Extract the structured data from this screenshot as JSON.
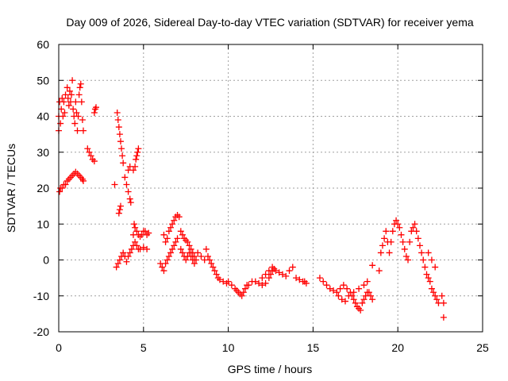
{
  "chart_data": {
    "type": "scatter",
    "title": "Day 009 of 2026, Sidereal Day-to-day VTEC variation (SDTVAR) for receiver yema",
    "xlabel": "GPS time / hours",
    "ylabel": "SDTVAR / TECUs",
    "xlim": [
      0,
      25
    ],
    "ylim": [
      -20,
      60
    ],
    "xticks": [
      "0",
      "5",
      "10",
      "15",
      "20",
      "25"
    ],
    "yticks": [
      "-20",
      "-10",
      "0",
      "10",
      "20",
      "30",
      "40",
      "50",
      "60"
    ],
    "grid": true,
    "marker": "+",
    "marker_color": "#ff0000",
    "series": [
      {
        "name": "SDTVAR",
        "points": [
          [
            0.0,
            36
          ],
          [
            0.0,
            40
          ],
          [
            0.05,
            44
          ],
          [
            0.1,
            38
          ],
          [
            0.15,
            42
          ],
          [
            0.2,
            45
          ],
          [
            0.25,
            40
          ],
          [
            0.3,
            44
          ],
          [
            0.35,
            41
          ],
          [
            0.4,
            46
          ],
          [
            0.5,
            48
          ],
          [
            0.55,
            45
          ],
          [
            0.6,
            43
          ],
          [
            0.65,
            47
          ],
          [
            0.7,
            44
          ],
          [
            0.75,
            46
          ],
          [
            0.8,
            50
          ],
          [
            0.85,
            42
          ],
          [
            0.9,
            40
          ],
          [
            0.95,
            38
          ],
          [
            1.0,
            44
          ],
          [
            1.05,
            41
          ],
          [
            1.1,
            36
          ],
          [
            1.15,
            40
          ],
          [
            1.2,
            46
          ],
          [
            1.25,
            48
          ],
          [
            1.3,
            49
          ],
          [
            1.35,
            44
          ],
          [
            1.4,
            39
          ],
          [
            1.45,
            36
          ],
          [
            0.05,
            19
          ],
          [
            0.1,
            20
          ],
          [
            0.2,
            20
          ],
          [
            0.3,
            21
          ],
          [
            0.4,
            21
          ],
          [
            0.5,
            22
          ],
          [
            0.6,
            22.5
          ],
          [
            0.7,
            23
          ],
          [
            0.8,
            23.5
          ],
          [
            0.9,
            24
          ],
          [
            1.0,
            24.5
          ],
          [
            1.1,
            24
          ],
          [
            1.2,
            23.5
          ],
          [
            1.3,
            23
          ],
          [
            1.4,
            22.5
          ],
          [
            1.45,
            22
          ],
          [
            1.7,
            31
          ],
          [
            1.8,
            30
          ],
          [
            1.9,
            29
          ],
          [
            2.0,
            28
          ],
          [
            2.1,
            27.5
          ],
          [
            2.1,
            41
          ],
          [
            2.15,
            42
          ],
          [
            2.2,
            42.5
          ],
          [
            3.3,
            21
          ],
          [
            3.45,
            41
          ],
          [
            3.5,
            39
          ],
          [
            3.55,
            37
          ],
          [
            3.6,
            35
          ],
          [
            3.65,
            33
          ],
          [
            3.7,
            31
          ],
          [
            3.75,
            29
          ],
          [
            3.8,
            27
          ],
          [
            3.4,
            -2
          ],
          [
            3.5,
            -1
          ],
          [
            3.6,
            0
          ],
          [
            3.7,
            1
          ],
          [
            3.8,
            2
          ],
          [
            3.9,
            1
          ],
          [
            3.55,
            13
          ],
          [
            3.6,
            14
          ],
          [
            3.65,
            15
          ],
          [
            3.9,
            23
          ],
          [
            4.0,
            21
          ],
          [
            4.1,
            19
          ],
          [
            4.2,
            17
          ],
          [
            4.25,
            16
          ],
          [
            4.1,
            25
          ],
          [
            4.2,
            26
          ],
          [
            4.4,
            25
          ],
          [
            4.5,
            26
          ],
          [
            4.55,
            28
          ],
          [
            4.6,
            29
          ],
          [
            4.65,
            30
          ],
          [
            4.7,
            31
          ],
          [
            4.0,
            -0.5
          ],
          [
            4.1,
            1
          ],
          [
            4.2,
            2
          ],
          [
            4.3,
            3
          ],
          [
            4.4,
            4
          ],
          [
            4.5,
            5
          ],
          [
            4.6,
            4
          ],
          [
            4.7,
            3
          ],
          [
            4.8,
            3
          ],
          [
            5.0,
            3.5
          ],
          [
            5.2,
            3
          ],
          [
            4.4,
            7
          ],
          [
            4.5,
            9
          ],
          [
            4.6,
            8
          ],
          [
            4.7,
            7
          ],
          [
            4.8,
            6.5
          ],
          [
            4.9,
            7
          ],
          [
            5.0,
            8
          ],
          [
            5.1,
            8
          ],
          [
            5.2,
            7
          ],
          [
            5.3,
            7.5
          ],
          [
            4.45,
            10
          ],
          [
            6.0,
            -1
          ],
          [
            6.1,
            -2
          ],
          [
            6.2,
            -3
          ],
          [
            6.3,
            -1
          ],
          [
            6.4,
            0
          ],
          [
            6.5,
            1
          ],
          [
            6.6,
            2
          ],
          [
            6.7,
            3
          ],
          [
            6.8,
            4
          ],
          [
            6.9,
            5
          ],
          [
            7.0,
            6
          ],
          [
            6.2,
            7
          ],
          [
            6.3,
            5
          ],
          [
            6.4,
            6
          ],
          [
            6.5,
            8
          ],
          [
            6.6,
            9
          ],
          [
            6.7,
            10
          ],
          [
            6.8,
            11
          ],
          [
            6.9,
            12
          ],
          [
            7.0,
            12.5
          ],
          [
            7.1,
            12
          ],
          [
            7.2,
            3
          ],
          [
            7.3,
            2
          ],
          [
            7.4,
            1
          ],
          [
            7.5,
            0
          ],
          [
            7.6,
            1
          ],
          [
            7.7,
            2
          ],
          [
            7.8,
            1
          ],
          [
            7.9,
            0
          ],
          [
            8.0,
            -1
          ],
          [
            8.1,
            0
          ],
          [
            7.2,
            8
          ],
          [
            7.3,
            7
          ],
          [
            7.4,
            6
          ],
          [
            7.5,
            5.5
          ],
          [
            7.6,
            5
          ],
          [
            7.7,
            4
          ],
          [
            7.8,
            3
          ],
          [
            7.9,
            2
          ],
          [
            8.0,
            1
          ],
          [
            8.2,
            2
          ],
          [
            8.4,
            1
          ],
          [
            8.6,
            0
          ],
          [
            8.7,
            3
          ],
          [
            8.8,
            1
          ],
          [
            8.9,
            0
          ],
          [
            9.0,
            -1
          ],
          [
            9.1,
            -2
          ],
          [
            9.2,
            -3
          ],
          [
            9.3,
            -4
          ],
          [
            9.4,
            -5
          ],
          [
            9.5,
            -5.5
          ],
          [
            9.7,
            -6
          ],
          [
            9.9,
            -6.5
          ],
          [
            10.0,
            -6
          ],
          [
            10.2,
            -7
          ],
          [
            10.4,
            -8
          ],
          [
            10.5,
            -8.5
          ],
          [
            10.6,
            -9
          ],
          [
            10.7,
            -9.5
          ],
          [
            10.8,
            -10
          ],
          [
            10.9,
            -9
          ],
          [
            11.0,
            -8
          ],
          [
            11.1,
            -7
          ],
          [
            11.2,
            -7
          ],
          [
            11.4,
            -6
          ],
          [
            11.6,
            -6
          ],
          [
            11.8,
            -6.5
          ],
          [
            12.0,
            -7
          ],
          [
            12.2,
            -6.5
          ],
          [
            12.4,
            -5
          ],
          [
            12.5,
            -4
          ],
          [
            12.6,
            -3
          ],
          [
            12.7,
            -2.5
          ],
          [
            12.0,
            -5
          ],
          [
            12.2,
            -4
          ],
          [
            12.4,
            -3
          ],
          [
            12.6,
            -2
          ],
          [
            12.8,
            -3
          ],
          [
            13.0,
            -3.5
          ],
          [
            13.2,
            -4
          ],
          [
            13.4,
            -4.5
          ],
          [
            13.6,
            -3
          ],
          [
            13.8,
            -2
          ],
          [
            14.0,
            -5
          ],
          [
            14.2,
            -5.5
          ],
          [
            14.4,
            -6
          ],
          [
            14.5,
            -6
          ],
          [
            14.6,
            -6.5
          ],
          [
            15.4,
            -5
          ],
          [
            15.6,
            -6
          ],
          [
            15.8,
            -7
          ],
          [
            16.0,
            -8
          ],
          [
            16.2,
            -8.5
          ],
          [
            16.4,
            -9
          ],
          [
            16.6,
            -8
          ],
          [
            16.8,
            -7
          ],
          [
            17.0,
            -8
          ],
          [
            17.2,
            -9
          ],
          [
            17.3,
            -10
          ],
          [
            17.4,
            -11
          ],
          [
            17.5,
            -12
          ],
          [
            17.6,
            -13
          ],
          [
            17.7,
            -13.5
          ],
          [
            17.8,
            -14
          ],
          [
            17.9,
            -12
          ],
          [
            18.0,
            -11
          ],
          [
            18.1,
            -10
          ],
          [
            18.2,
            -9
          ],
          [
            16.5,
            -10
          ],
          [
            16.7,
            -11
          ],
          [
            16.9,
            -11.5
          ],
          [
            17.1,
            -10
          ],
          [
            17.4,
            -9
          ],
          [
            17.7,
            -8
          ],
          [
            18.0,
            -7
          ],
          [
            18.2,
            -6
          ],
          [
            18.3,
            -9
          ],
          [
            18.4,
            -10
          ],
          [
            18.5,
            -11
          ],
          [
            18.5,
            -1.5
          ],
          [
            18.9,
            -3
          ],
          [
            19.0,
            2
          ],
          [
            19.1,
            4
          ],
          [
            19.2,
            6
          ],
          [
            19.3,
            8
          ],
          [
            19.4,
            5
          ],
          [
            19.5,
            2
          ],
          [
            19.6,
            5
          ],
          [
            19.7,
            8
          ],
          [
            19.8,
            10
          ],
          [
            19.9,
            11
          ],
          [
            20.0,
            10
          ],
          [
            20.1,
            9
          ],
          [
            20.2,
            7
          ],
          [
            20.3,
            5
          ],
          [
            20.4,
            3
          ],
          [
            20.5,
            1
          ],
          [
            20.6,
            0
          ],
          [
            20.7,
            5
          ],
          [
            20.8,
            8
          ],
          [
            20.9,
            9
          ],
          [
            21.0,
            10
          ],
          [
            21.1,
            8
          ],
          [
            21.2,
            6
          ],
          [
            21.3,
            4
          ],
          [
            21.4,
            2
          ],
          [
            21.5,
            0
          ],
          [
            21.6,
            -2
          ],
          [
            21.7,
            -4
          ],
          [
            21.8,
            -5
          ],
          [
            21.9,
            -6
          ],
          [
            22.0,
            -8
          ],
          [
            22.1,
            -9
          ],
          [
            22.2,
            -10
          ],
          [
            22.3,
            -11
          ],
          [
            22.4,
            -12
          ],
          [
            21.8,
            2
          ],
          [
            22.0,
            0
          ],
          [
            22.2,
            -2
          ],
          [
            22.6,
            -10
          ],
          [
            22.7,
            -12
          ],
          [
            22.7,
            -16
          ]
        ]
      }
    ]
  }
}
